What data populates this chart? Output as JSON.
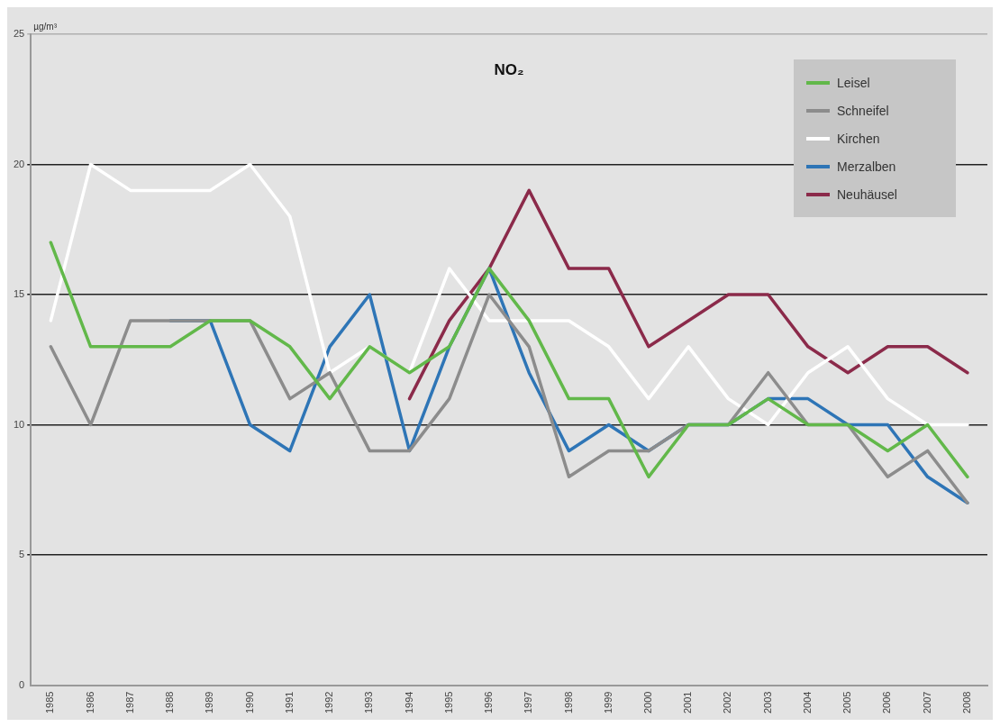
{
  "chart_data": {
    "type": "line",
    "title": "NO₂",
    "ylabel": "µg/m³",
    "categories": [
      "1985",
      "1986",
      "1987",
      "1988",
      "1989",
      "1990",
      "1991",
      "1992",
      "1993",
      "1994",
      "1995",
      "1996",
      "1997",
      "1998",
      "1999",
      "2000",
      "2001",
      "2002",
      "2003",
      "2004",
      "2005",
      "2006",
      "2007",
      "2008"
    ],
    "series": [
      {
        "name": "Leisel",
        "color": "#62b84a",
        "values": [
          17,
          13,
          13,
          13,
          14,
          14,
          13,
          11,
          13,
          12,
          13,
          16,
          14,
          11,
          11,
          8,
          10,
          10,
          11,
          10,
          10,
          9,
          10,
          8
        ]
      },
      {
        "name": "Schneifel",
        "color": "#8c8c8c",
        "values": [
          13,
          10,
          14,
          14,
          14,
          14,
          11,
          12,
          9,
          9,
          11,
          15,
          13,
          8,
          9,
          9,
          10,
          10,
          12,
          10,
          10,
          8,
          9,
          7
        ]
      },
      {
        "name": "Kirchen",
        "color": "#ffffff",
        "values": [
          14,
          20,
          19,
          19,
          19,
          20,
          18,
          12,
          13,
          12,
          16,
          14,
          14,
          14,
          13,
          11,
          13,
          11,
          10,
          12,
          13,
          11,
          10,
          10
        ]
      },
      {
        "name": "Merzalben",
        "color": "#2e75b6",
        "values": [
          null,
          null,
          null,
          14,
          14,
          10,
          9,
          13,
          15,
          9,
          13,
          16,
          12,
          9,
          10,
          9,
          10,
          10,
          11,
          11,
          10,
          10,
          8,
          7
        ]
      },
      {
        "name": "Neuhäusel",
        "color": "#8b2a4a",
        "values": [
          null,
          null,
          null,
          null,
          null,
          null,
          null,
          null,
          null,
          11,
          14,
          16,
          19,
          16,
          16,
          13,
          14,
          15,
          15,
          13,
          12,
          13,
          13,
          12
        ]
      }
    ],
    "ylim": [
      0,
      25
    ],
    "yticks": [
      0,
      5,
      10,
      15,
      20,
      25
    ],
    "grid": "y",
    "legend": "top right",
    "marker": "none",
    "line_style": "solid"
  }
}
